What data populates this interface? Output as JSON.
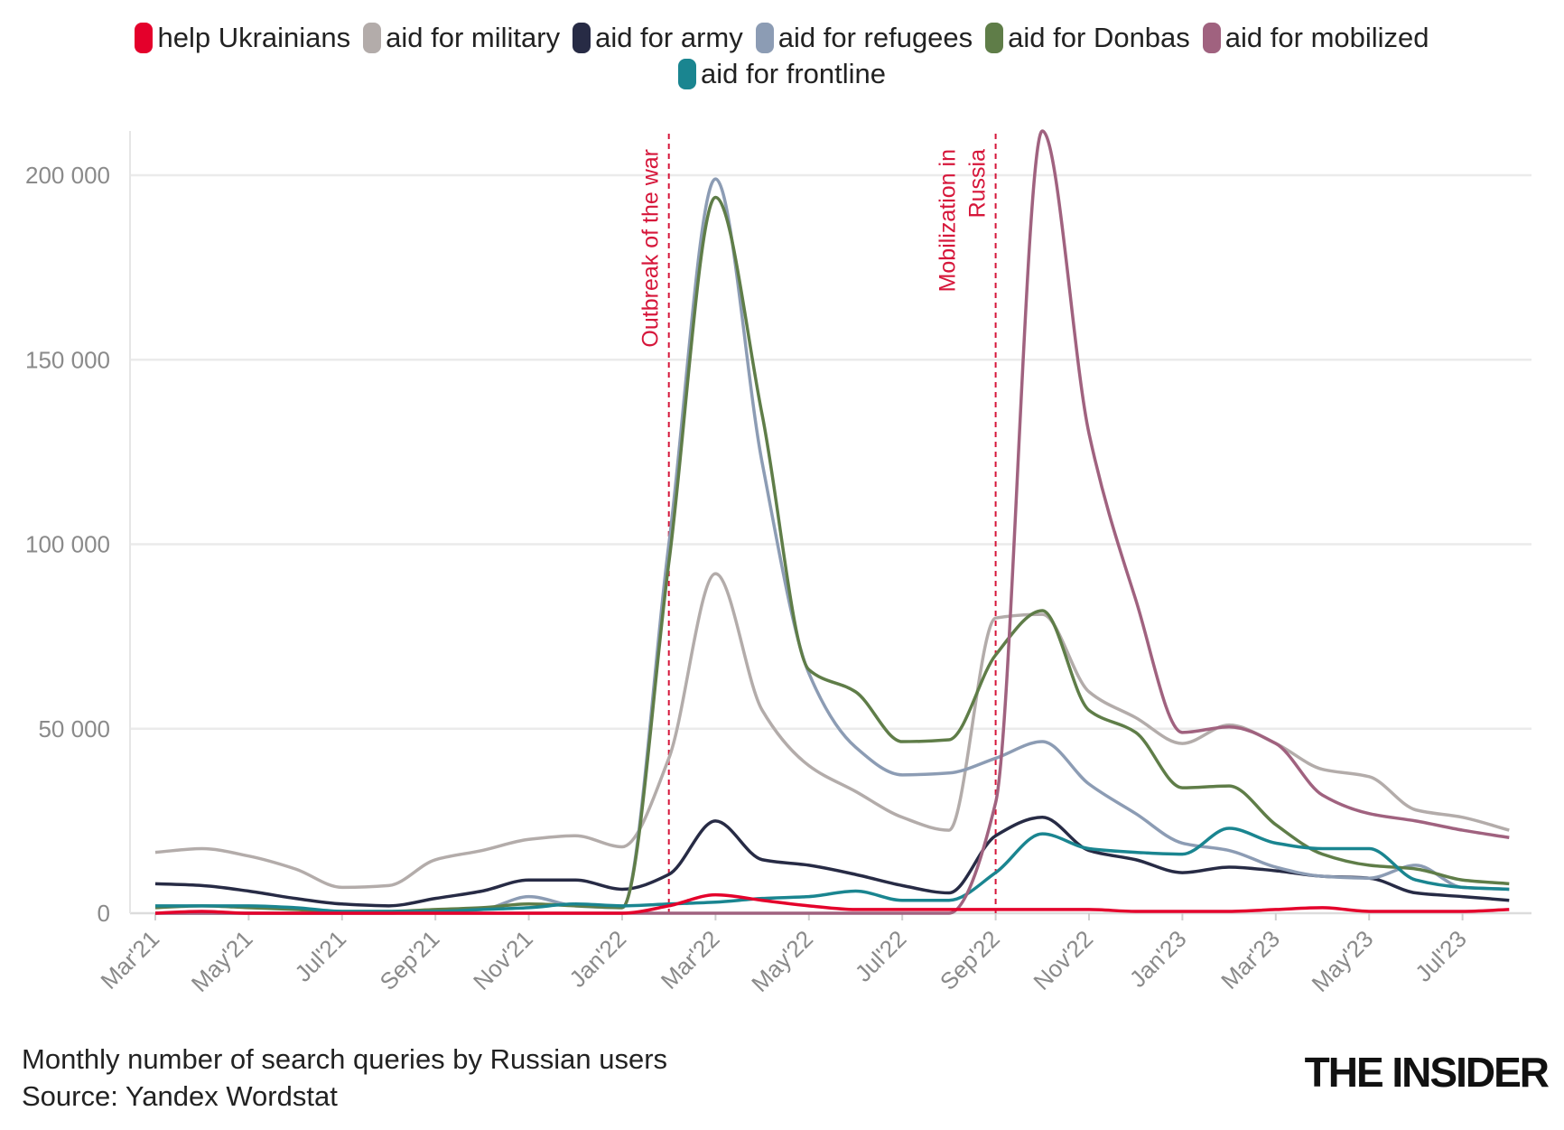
{
  "chart_data": {
    "type": "line",
    "title": "",
    "xlabel": "",
    "ylabel": "",
    "ylim": [
      0,
      212000
    ],
    "grid": true,
    "legend_position": "top",
    "x": [
      "Mar'21",
      "Apr'21",
      "May'21",
      "Jun'21",
      "Jul'21",
      "Aug'21",
      "Sep'21",
      "Oct'21",
      "Nov'21",
      "Dec'21",
      "Jan'22",
      "Feb'22",
      "Mar'22",
      "Apr'22",
      "May'22",
      "Jun'22",
      "Jul'22",
      "Aug'22",
      "Sep'22",
      "Oct'22",
      "Nov'22",
      "Dec'22",
      "Jan'23",
      "Feb'23",
      "Mar'23",
      "Apr'23",
      "May'23",
      "Jun'23",
      "Jul'23",
      "Aug'23"
    ],
    "x_tick_labels": [
      "Mar'21",
      "May'21",
      "Jul'21",
      "Sep'21",
      "Nov'21",
      "Jan'22",
      "Mar'22",
      "May'22",
      "Jul'22",
      "Sep'22",
      "Nov'22",
      "Jan'23",
      "Mar'23",
      "May'23",
      "Jul'23"
    ],
    "y_ticks": [
      0,
      50000,
      100000,
      150000,
      200000
    ],
    "y_tick_labels": [
      "0",
      "50 000",
      "100 000",
      "150 000",
      "200 000"
    ],
    "series": [
      {
        "name": "help Ukrainians",
        "color": "#e4002b",
        "values": [
          0,
          500,
          0,
          0,
          0,
          0,
          0,
          0,
          0,
          0,
          0,
          2000,
          5000,
          3500,
          2000,
          1000,
          1000,
          1000,
          1000,
          1000,
          1000,
          500,
          500,
          500,
          1000,
          1500,
          500,
          500,
          500,
          1000
        ]
      },
      {
        "name": "aid for military",
        "color": "#b3acaa",
        "values": [
          16500,
          17500,
          15500,
          12000,
          7000,
          7500,
          14500,
          17000,
          20000,
          21000,
          18000,
          42000,
          92000,
          55000,
          40000,
          33000,
          26000,
          22500,
          80000,
          81000,
          60000,
          53000,
          46000,
          51000,
          46000,
          39000,
          37000,
          28000,
          26000,
          22500
        ]
      },
      {
        "name": "aid for army",
        "color": "#272b45",
        "values": [
          8000,
          7500,
          6000,
          4000,
          2500,
          2000,
          4000,
          6000,
          9000,
          9000,
          6500,
          10500,
          25000,
          14500,
          13000,
          10500,
          7500,
          5500,
          21000,
          26000,
          17000,
          14500,
          11000,
          12500,
          11500,
          10000,
          9500,
          5500,
          4500,
          3500
        ]
      },
      {
        "name": "aid for refugees",
        "color": "#8c9cb4",
        "values": [
          0,
          0,
          0,
          0,
          0,
          0,
          500,
          1000,
          4500,
          2000,
          1500,
          100000,
          199000,
          122000,
          65000,
          45000,
          37500,
          38000,
          42000,
          46500,
          35000,
          27000,
          19000,
          17000,
          12500,
          10000,
          9500,
          13000,
          7000,
          6500
        ]
      },
      {
        "name": "aid for Donbas",
        "color": "#5f7d48",
        "values": [
          1500,
          2000,
          1500,
          1000,
          500,
          500,
          1000,
          1500,
          2500,
          2000,
          1500,
          95000,
          194000,
          135000,
          66000,
          60000,
          46500,
          47000,
          70000,
          82000,
          55000,
          49000,
          34000,
          34500,
          24000,
          16000,
          13000,
          12000,
          9000,
          8000
        ]
      },
      {
        "name": "aid for mobilized",
        "color": "#a0627f",
        "values": [
          0,
          0,
          0,
          0,
          0,
          0,
          0,
          0,
          0,
          0,
          0,
          0,
          0,
          0,
          0,
          0,
          0,
          0,
          30000,
          212000,
          130000,
          85000,
          49000,
          50500,
          46000,
          32000,
          27000,
          25000,
          22500,
          20500
        ]
      },
      {
        "name": "aid for frontline",
        "color": "#1a8590",
        "values": [
          2000,
          2000,
          2000,
          1500,
          500,
          500,
          500,
          1000,
          1500,
          2500,
          2000,
          2500,
          3000,
          4000,
          4500,
          6000,
          3500,
          3500,
          11000,
          21500,
          17500,
          16500,
          16000,
          23000,
          19000,
          17500,
          17500,
          9000,
          7000,
          6500
        ]
      }
    ],
    "annotations": [
      {
        "x": "Feb'22",
        "text": "Outbreak of the war"
      },
      {
        "x": "Sep'22",
        "text": "Mobilization in Russia"
      }
    ],
    "annotation_color": "#d6163a"
  },
  "footer": {
    "line1": "Monthly number of search queries by Russian users",
    "line2": "Source: Yandex Wordstat"
  },
  "logo": "THE INSIDER"
}
